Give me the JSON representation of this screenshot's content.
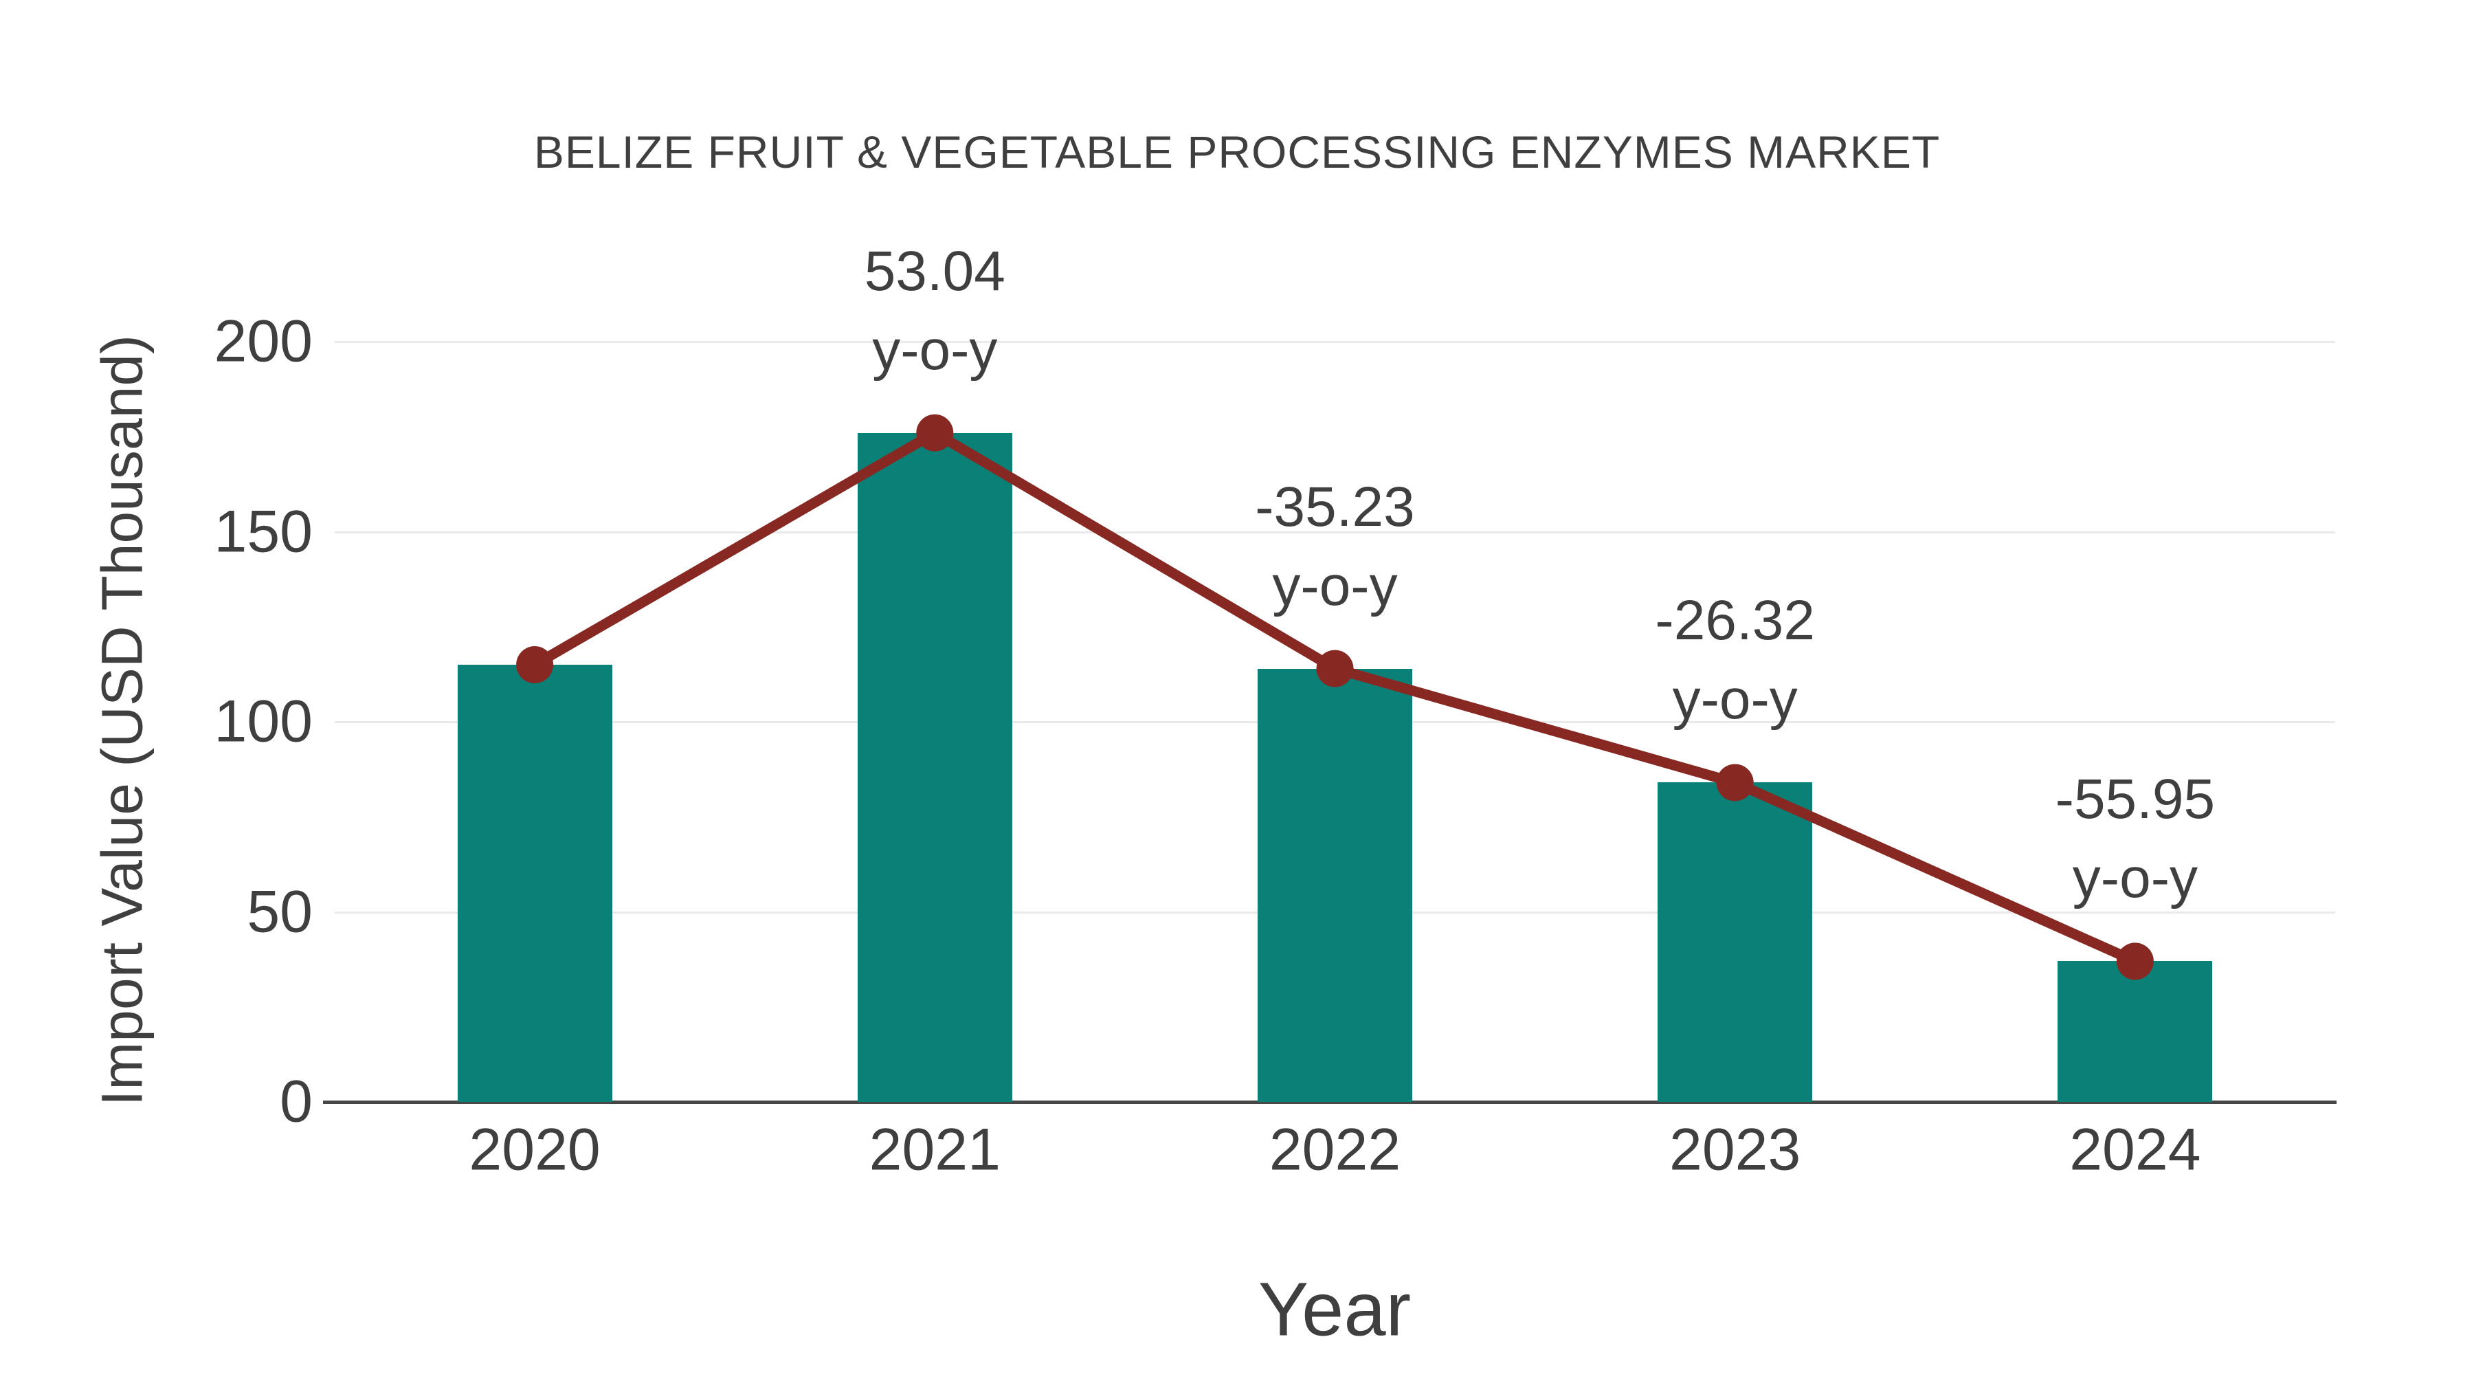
{
  "chart_data": {
    "type": "bar",
    "title": "BELIZE FRUIT & VEGETABLE PROCESSING ENZYMES MARKET",
    "xlabel": "Year",
    "ylabel": "Import Value (USD Thousand)",
    "categories": [
      "2020",
      "2021",
      "2022",
      "2023",
      "2024"
    ],
    "values": [
      115,
      176,
      114,
      84,
      37
    ],
    "line_overlay": {
      "name": "import-value-trend-line",
      "values": [
        115,
        176,
        114,
        84,
        37
      ],
      "color": "#882822"
    },
    "annotations": [
      {
        "category": "2021",
        "value_label": "53.04",
        "sub_label": "y-o-y"
      },
      {
        "category": "2022",
        "value_label": "-35.23",
        "sub_label": "y-o-y"
      },
      {
        "category": "2023",
        "value_label": "-26.32",
        "sub_label": "y-o-y"
      },
      {
        "category": "2024",
        "value_label": "-55.95",
        "sub_label": "y-o-y"
      }
    ],
    "ylim": [
      0,
      200
    ],
    "yticks": [
      0,
      50,
      100,
      150,
      200
    ],
    "grid": true,
    "legend_position": "none",
    "bar_color": "#0A8077",
    "text_color": "#3f3f3f",
    "grid_color": "#e9e9e9",
    "axis_line_color": "#474747",
    "background": "#ffffff"
  }
}
